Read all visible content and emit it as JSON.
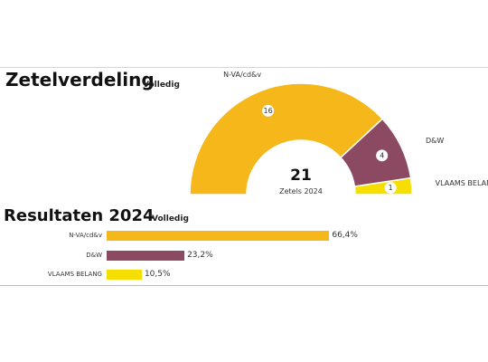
{
  "seat_section": {
    "title": "Zetelverdeling",
    "badge": "Volledig",
    "total_seats": "21",
    "total_label": "Zetels 2024"
  },
  "results_section": {
    "title": "Resultaten 2024",
    "badge": "Volledig"
  },
  "colors": {
    "nva_cdv": "#f5b719",
    "dw": "#8b4a62",
    "vlaams_belang": "#f6df00"
  },
  "chart_data": [
    {
      "type": "pie",
      "subtype": "half-donut",
      "title": "Zetelverdeling",
      "categories": [
        "N-VA/cd&v",
        "D&W",
        "VLAAMS BELANG"
      ],
      "values": [
        16,
        4,
        1
      ],
      "total": 21,
      "center_label": "Zetels 2024"
    },
    {
      "type": "bar",
      "orientation": "horizontal",
      "title": "Resultaten 2024",
      "categories": [
        "N-VA/cd&v",
        "D&W",
        "VLAAMS BELANG"
      ],
      "values": [
        66.4,
        23.2,
        10.5
      ],
      "value_labels": [
        "66,4%",
        "23,2%",
        "10,5%"
      ],
      "unit": "%",
      "xlim": [
        0,
        100
      ]
    }
  ]
}
